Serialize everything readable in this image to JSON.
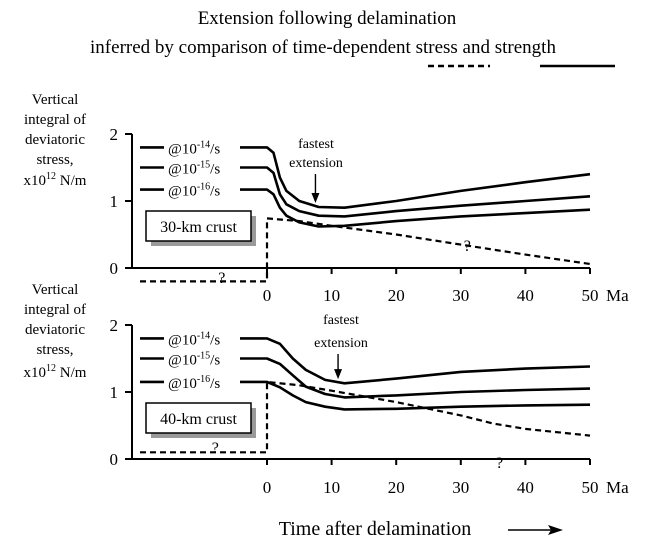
{
  "title_line1": "Extension following delamination",
  "title_line2_pre": "inferred by comparison of time-dependent ",
  "title_stress": "stress",
  "title_and": " and ",
  "title_strength": "strength",
  "ylabel": {
    "line1": "Vertical",
    "line2": "integral of",
    "line3": "deviatoric",
    "line4": "stress,",
    "line5": "x10",
    "line5_sup": "12",
    "line5_unit": " N/m"
  },
  "xlabel": "Time after delamination",
  "x_unit": "Ma",
  "rate_labels": [
    {
      "pre": "@10",
      "exp": "-14",
      "post": "/s"
    },
    {
      "pre": "@10",
      "exp": "-15",
      "post": "/s"
    },
    {
      "pre": "@10",
      "exp": "-16",
      "post": "/s"
    }
  ],
  "annotation": [
    "fastest",
    "extension"
  ],
  "unknown_mark": "?",
  "chart_data": [
    {
      "type": "line",
      "panel_label": "30-km crust",
      "xlim": [
        0,
        50
      ],
      "ylim": [
        0,
        2
      ],
      "x_ticks": [
        "0",
        "10",
        "20",
        "30",
        "40",
        "50"
      ],
      "y_ticks": [
        "0",
        "1",
        "2"
      ],
      "strength_series": [
        {
          "name": "@10-14/s",
          "style": "solid",
          "points": [
            [
              -20,
              1.8
            ],
            [
              0,
              1.8
            ],
            [
              1,
              1.72
            ],
            [
              2,
              1.35
            ],
            [
              3,
              1.15
            ],
            [
              5,
              1.0
            ],
            [
              8,
              0.91
            ],
            [
              12,
              0.9
            ],
            [
              20,
              1.0
            ],
            [
              30,
              1.15
            ],
            [
              40,
              1.28
            ],
            [
              50,
              1.4
            ]
          ]
        },
        {
          "name": "@10-15/s",
          "style": "solid",
          "points": [
            [
              -20,
              1.5
            ],
            [
              0,
              1.5
            ],
            [
              1,
              1.42
            ],
            [
              2,
              1.1
            ],
            [
              3,
              0.95
            ],
            [
              5,
              0.85
            ],
            [
              8,
              0.78
            ],
            [
              12,
              0.77
            ],
            [
              20,
              0.85
            ],
            [
              30,
              0.93
            ],
            [
              40,
              1.0
            ],
            [
              50,
              1.07
            ]
          ]
        },
        {
          "name": "@10-16/s",
          "style": "solid",
          "points": [
            [
              -20,
              1.17
            ],
            [
              0,
              1.17
            ],
            [
              1,
              1.1
            ],
            [
              2,
              0.9
            ],
            [
              3,
              0.78
            ],
            [
              5,
              0.68
            ],
            [
              8,
              0.62
            ],
            [
              12,
              0.63
            ],
            [
              20,
              0.7
            ],
            [
              30,
              0.77
            ],
            [
              40,
              0.82
            ],
            [
              50,
              0.87
            ]
          ]
        }
      ],
      "stress_series": {
        "style": "dashed",
        "points": [
          [
            -20,
            -0.2
          ],
          [
            0,
            -0.2
          ],
          [
            0,
            0.74
          ],
          [
            5,
            0.7
          ],
          [
            10,
            0.63
          ],
          [
            20,
            0.5
          ],
          [
            30,
            0.35
          ],
          [
            40,
            0.2
          ],
          [
            50,
            0.06
          ]
        ],
        "unknown_before_x": -7,
        "unknown_after_x": 31
      },
      "fastest_extension_x": 7.5
    },
    {
      "type": "line",
      "panel_label": "40-km crust",
      "xlim": [
        0,
        50
      ],
      "ylim": [
        0,
        2
      ],
      "x_ticks": [
        "0",
        "10",
        "20",
        "30",
        "40",
        "50"
      ],
      "y_ticks": [
        "0",
        "1",
        "2"
      ],
      "strength_series": [
        {
          "name": "@10-14/s",
          "style": "solid",
          "points": [
            [
              -20,
              1.8
            ],
            [
              0,
              1.8
            ],
            [
              2,
              1.72
            ],
            [
              4,
              1.5
            ],
            [
              6,
              1.33
            ],
            [
              9,
              1.18
            ],
            [
              12,
              1.13
            ],
            [
              20,
              1.2
            ],
            [
              30,
              1.3
            ],
            [
              40,
              1.35
            ],
            [
              50,
              1.38
            ]
          ]
        },
        {
          "name": "@10-15/s",
          "style": "solid",
          "points": [
            [
              -20,
              1.5
            ],
            [
              0,
              1.5
            ],
            [
              2,
              1.42
            ],
            [
              4,
              1.25
            ],
            [
              6,
              1.08
            ],
            [
              9,
              0.97
            ],
            [
              12,
              0.92
            ],
            [
              20,
              0.95
            ],
            [
              30,
              1.0
            ],
            [
              40,
              1.03
            ],
            [
              50,
              1.05
            ]
          ]
        },
        {
          "name": "@10-16/s",
          "style": "solid",
          "points": [
            [
              -20,
              1.15
            ],
            [
              0,
              1.15
            ],
            [
              2,
              1.07
            ],
            [
              4,
              0.95
            ],
            [
              6,
              0.85
            ],
            [
              9,
              0.78
            ],
            [
              12,
              0.74
            ],
            [
              20,
              0.75
            ],
            [
              30,
              0.78
            ],
            [
              40,
              0.8
            ],
            [
              50,
              0.81
            ]
          ]
        }
      ],
      "stress_series": {
        "style": "dashed",
        "points": [
          [
            -20,
            0.1
          ],
          [
            0,
            0.1
          ],
          [
            0,
            1.15
          ],
          [
            5,
            1.1
          ],
          [
            10,
            1.02
          ],
          [
            20,
            0.85
          ],
          [
            30,
            0.65
          ],
          [
            35,
            0.53
          ],
          [
            40,
            0.45
          ],
          [
            50,
            0.35
          ]
        ],
        "unknown_before_x": -8,
        "unknown_after_x": 36
      },
      "fastest_extension_x": 11
    }
  ]
}
